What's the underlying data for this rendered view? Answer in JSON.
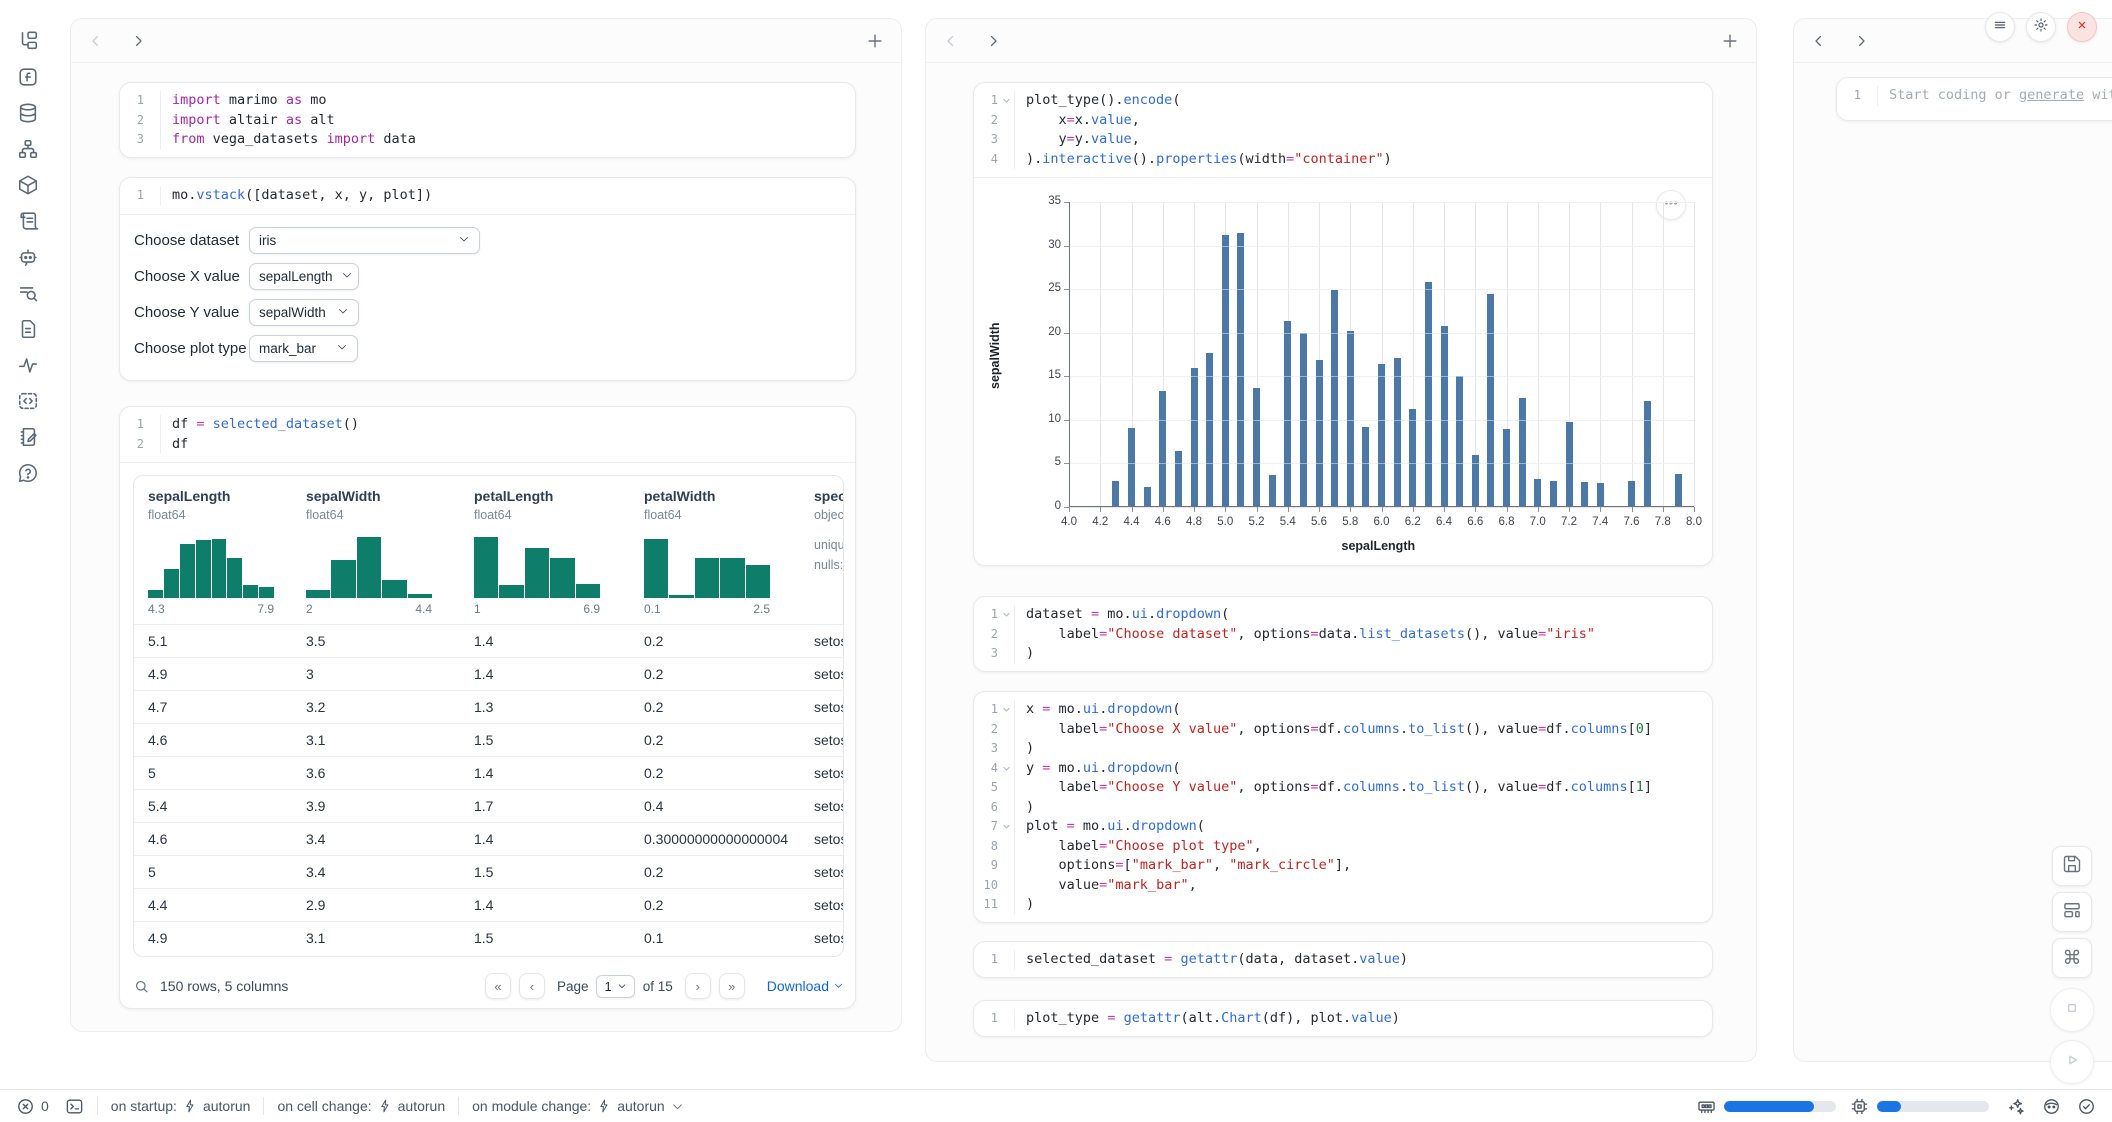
{
  "rail_icons": [
    "file-tree",
    "function-square",
    "database",
    "dependency-graph",
    "package",
    "script-scroll",
    "ai-chat",
    "search-list",
    "document",
    "activity",
    "code-block",
    "scratchpad",
    "help"
  ],
  "window_controls": {
    "menu": "menu",
    "settings": "gear",
    "close": "close"
  },
  "col_left": {
    "cells": {
      "imports": {
        "folds": [],
        "lines": [
          [
            [
              "kw",
              "import"
            ],
            [
              "df",
              " marimo "
            ],
            [
              "kw",
              "as"
            ],
            [
              "df",
              " mo"
            ]
          ],
          [
            [
              "kw",
              "import"
            ],
            [
              "df",
              " altair "
            ],
            [
              "kw",
              "as"
            ],
            [
              "df",
              " alt"
            ]
          ],
          [
            [
              "kw",
              "from"
            ],
            [
              "df",
              " vega_datasets "
            ],
            [
              "kw",
              "import"
            ],
            [
              "df",
              " data"
            ]
          ]
        ]
      },
      "vstack": {
        "folds": [],
        "lines": [
          [
            [
              "df",
              "mo."
            ],
            [
              "fn",
              "vstack"
            ],
            [
              "df",
              "([dataset, x, y, plot])"
            ]
          ]
        ]
      },
      "df": {
        "folds": [],
        "lines": [
          [
            [
              "df",
              "df "
            ],
            [
              "op",
              "="
            ],
            [
              "df",
              " "
            ],
            [
              "fn",
              "selected_dataset"
            ],
            [
              "df",
              "()"
            ]
          ],
          [
            [
              "df",
              "df"
            ]
          ]
        ]
      }
    },
    "controls": [
      {
        "label": "Choose dataset",
        "value": "iris"
      },
      {
        "label": "Choose X value",
        "value": "sepalLength"
      },
      {
        "label": "Choose Y value",
        "value": "sepalWidth"
      },
      {
        "label": "Choose plot type",
        "value": "mark_bar"
      }
    ],
    "table": {
      "columns": [
        {
          "name": "sepalLength",
          "dtype": "float64",
          "min": "4.3",
          "max": "7.9",
          "hist": [
            0.12,
            0.45,
            0.85,
            0.9,
            0.92,
            0.62,
            0.2,
            0.17
          ]
        },
        {
          "name": "sepalWidth",
          "dtype": "float64",
          "min": "2",
          "max": "4.4",
          "hist": [
            0.12,
            0.6,
            0.95,
            0.28,
            0.06
          ]
        },
        {
          "name": "petalLength",
          "dtype": "float64",
          "min": "1",
          "max": "6.9",
          "hist": [
            0.95,
            0.2,
            0.78,
            0.62,
            0.22
          ]
        },
        {
          "name": "petalWidth",
          "dtype": "float64",
          "min": "0.1",
          "max": "2.5",
          "hist": [
            0.92,
            0.05,
            0.62,
            0.62,
            0.52
          ]
        },
        {
          "name": "speci",
          "dtype": "objec",
          "extra": [
            "uniqu",
            "nulls:"
          ]
        }
      ],
      "rows": [
        [
          "5.1",
          "3.5",
          "1.4",
          "0.2",
          "setos"
        ],
        [
          "4.9",
          "3",
          "1.4",
          "0.2",
          "setos"
        ],
        [
          "4.7",
          "3.2",
          "1.3",
          "0.2",
          "setos"
        ],
        [
          "4.6",
          "3.1",
          "1.5",
          "0.2",
          "setos"
        ],
        [
          "5",
          "3.6",
          "1.4",
          "0.2",
          "setos"
        ],
        [
          "5.4",
          "3.9",
          "1.7",
          "0.4",
          "setos"
        ],
        [
          "4.6",
          "3.4",
          "1.4",
          "0.30000000000000004",
          "setos"
        ],
        [
          "5",
          "3.4",
          "1.5",
          "0.2",
          "setos"
        ],
        [
          "4.4",
          "2.9",
          "1.4",
          "0.2",
          "setos"
        ],
        [
          "4.9",
          "3.1",
          "1.5",
          "0.1",
          "setos"
        ]
      ],
      "footer": {
        "summary": "150 rows, 5 columns",
        "page_label": "Page",
        "page_value": "1",
        "of_label": "of 15",
        "download": "Download"
      }
    }
  },
  "col_right": {
    "cells": {
      "plot_encode": {
        "folds": [
          1
        ],
        "lines": [
          [
            [
              "df",
              "plot_type()."
            ],
            [
              "fn",
              "encode"
            ],
            [
              "df",
              "("
            ]
          ],
          [
            [
              "df",
              "    x"
            ],
            [
              "op",
              "="
            ],
            [
              "df",
              "x."
            ],
            [
              "fn",
              "value"
            ],
            [
              "df",
              ","
            ]
          ],
          [
            [
              "df",
              "    y"
            ],
            [
              "op",
              "="
            ],
            [
              "df",
              "y."
            ],
            [
              "fn",
              "value"
            ],
            [
              "df",
              ","
            ]
          ],
          [
            [
              "df",
              ")."
            ],
            [
              "fn",
              "interactive"
            ],
            [
              "df",
              "()."
            ],
            [
              "fn",
              "properties"
            ],
            [
              "df",
              "(width"
            ],
            [
              "op",
              "="
            ],
            [
              "str",
              "\"container\""
            ],
            [
              "df",
              ")"
            ]
          ]
        ]
      },
      "dataset_dd": {
        "folds": [
          1
        ],
        "lines": [
          [
            [
              "df",
              "dataset "
            ],
            [
              "op",
              "="
            ],
            [
              "df",
              " mo."
            ],
            [
              "fn",
              "ui"
            ],
            [
              "df",
              "."
            ],
            [
              "fn",
              "dropdown"
            ],
            [
              "df",
              "("
            ]
          ],
          [
            [
              "df",
              "    label"
            ],
            [
              "op",
              "="
            ],
            [
              "str",
              "\"Choose dataset\""
            ],
            [
              "df",
              ", options"
            ],
            [
              "op",
              "="
            ],
            [
              "df",
              "data."
            ],
            [
              "fn",
              "list_datasets"
            ],
            [
              "df",
              "(), value"
            ],
            [
              "op",
              "="
            ],
            [
              "str",
              "\"iris\""
            ]
          ],
          [
            [
              "df",
              ")"
            ]
          ]
        ]
      },
      "xyplot_dd": {
        "folds": [
          1,
          4,
          7
        ],
        "lines": [
          [
            [
              "df",
              "x "
            ],
            [
              "op",
              "="
            ],
            [
              "df",
              " mo."
            ],
            [
              "fn",
              "ui"
            ],
            [
              "df",
              "."
            ],
            [
              "fn",
              "dropdown"
            ],
            [
              "df",
              "("
            ]
          ],
          [
            [
              "df",
              "    label"
            ],
            [
              "op",
              "="
            ],
            [
              "str",
              "\"Choose X value\""
            ],
            [
              "df",
              ", options"
            ],
            [
              "op",
              "="
            ],
            [
              "df",
              "df."
            ],
            [
              "fn",
              "columns"
            ],
            [
              "df",
              "."
            ],
            [
              "fn",
              "to_list"
            ],
            [
              "df",
              "(), value"
            ],
            [
              "op",
              "="
            ],
            [
              "df",
              "df."
            ],
            [
              "fn",
              "columns"
            ],
            [
              "df",
              "["
            ],
            [
              "num",
              "0"
            ],
            [
              "df",
              "]"
            ]
          ],
          [
            [
              "df",
              ")"
            ]
          ],
          [
            [
              "df",
              "y "
            ],
            [
              "op",
              "="
            ],
            [
              "df",
              " mo."
            ],
            [
              "fn",
              "ui"
            ],
            [
              "df",
              "."
            ],
            [
              "fn",
              "dropdown"
            ],
            [
              "df",
              "("
            ]
          ],
          [
            [
              "df",
              "    label"
            ],
            [
              "op",
              "="
            ],
            [
              "str",
              "\"Choose Y value\""
            ],
            [
              "df",
              ", options"
            ],
            [
              "op",
              "="
            ],
            [
              "df",
              "df."
            ],
            [
              "fn",
              "columns"
            ],
            [
              "df",
              "."
            ],
            [
              "fn",
              "to_list"
            ],
            [
              "df",
              "(), value"
            ],
            [
              "op",
              "="
            ],
            [
              "df",
              "df."
            ],
            [
              "fn",
              "columns"
            ],
            [
              "df",
              "["
            ],
            [
              "num",
              "1"
            ],
            [
              "df",
              "]"
            ]
          ],
          [
            [
              "df",
              ")"
            ]
          ],
          [
            [
              "df",
              "plot "
            ],
            [
              "op",
              "="
            ],
            [
              "df",
              " mo."
            ],
            [
              "fn",
              "ui"
            ],
            [
              "df",
              "."
            ],
            [
              "fn",
              "dropdown"
            ],
            [
              "df",
              "("
            ]
          ],
          [
            [
              "df",
              "    label"
            ],
            [
              "op",
              "="
            ],
            [
              "str",
              "\"Choose plot type\""
            ],
            [
              "df",
              ","
            ]
          ],
          [
            [
              "df",
              "    options"
            ],
            [
              "op",
              "="
            ],
            [
              "df",
              "["
            ],
            [
              "str",
              "\"mark_bar\""
            ],
            [
              "df",
              ", "
            ],
            [
              "str",
              "\"mark_circle\""
            ],
            [
              "df",
              "],"
            ]
          ],
          [
            [
              "df",
              "    value"
            ],
            [
              "op",
              "="
            ],
            [
              "str",
              "\"mark_bar\""
            ],
            [
              "df",
              ","
            ]
          ],
          [
            [
              "df",
              ")"
            ]
          ]
        ]
      },
      "selected": {
        "folds": [],
        "lines": [
          [
            [
              "df",
              "selected_dataset "
            ],
            [
              "op",
              "="
            ],
            [
              "df",
              " "
            ],
            [
              "fn",
              "getattr"
            ],
            [
              "df",
              "(data, dataset."
            ],
            [
              "fn",
              "value"
            ],
            [
              "df",
              ")"
            ]
          ]
        ]
      },
      "plot_type": {
        "folds": [],
        "lines": [
          [
            [
              "df",
              "plot_type "
            ],
            [
              "op",
              "="
            ],
            [
              "df",
              " "
            ],
            [
              "fn",
              "getattr"
            ],
            [
              "df",
              "(alt."
            ],
            [
              "fn",
              "Chart"
            ],
            [
              "df",
              "(df), plot."
            ],
            [
              "fn",
              "value"
            ],
            [
              "df",
              ")"
            ]
          ]
        ]
      }
    }
  },
  "chart_data": {
    "type": "bar",
    "x": [
      4.3,
      4.4,
      4.5,
      4.6,
      4.7,
      4.8,
      4.9,
      5.0,
      5.1,
      5.2,
      5.3,
      5.4,
      5.5,
      5.6,
      5.7,
      5.8,
      5.9,
      6.0,
      6.1,
      6.2,
      6.3,
      6.4,
      6.5,
      6.6,
      6.7,
      6.8,
      6.9,
      7.0,
      7.1,
      7.2,
      7.3,
      7.4,
      7.6,
      7.7,
      7.9
    ],
    "values": [
      3.0,
      9.1,
      2.3,
      13.3,
      6.4,
      15.9,
      17.7,
      31.2,
      31.4,
      13.7,
      3.7,
      21.4,
      20.0,
      16.9,
      24.9,
      20.2,
      9.2,
      16.4,
      17.1,
      11.3,
      25.8,
      20.8,
      15.0,
      6.0,
      24.5,
      9.0,
      12.5,
      3.2,
      3.0,
      9.8,
      2.9,
      2.8,
      3.0,
      12.2,
      3.8
    ],
    "xlabel": "sepalLength",
    "ylabel": "sepalWidth",
    "xlim": [
      4.0,
      8.0
    ],
    "ylim": [
      0,
      35
    ],
    "xticks": [
      "4.0",
      "4.2",
      "4.4",
      "4.6",
      "4.8",
      "5.0",
      "5.2",
      "5.4",
      "5.6",
      "5.8",
      "6.0",
      "6.2",
      "6.4",
      "6.6",
      "6.8",
      "7.0",
      "7.2",
      "7.4",
      "7.6",
      "7.8",
      "8.0"
    ],
    "yticks": [
      0,
      5,
      10,
      15,
      20,
      25,
      30,
      35
    ],
    "grid": true,
    "legend": "none",
    "bar_color": "#4c78a8"
  },
  "ai_panel": {
    "line": "1",
    "prefix": "Start coding or ",
    "link": "generate",
    "suffix": " with "
  },
  "statusbar": {
    "errors": "0",
    "runs": [
      {
        "label": "on startup:",
        "value": "autorun"
      },
      {
        "label": "on cell change:",
        "value": "autorun"
      },
      {
        "label": "on module change:",
        "value": "autorun"
      }
    ],
    "ram_fill": 0.8,
    "cpu_fill": 0.21
  }
}
